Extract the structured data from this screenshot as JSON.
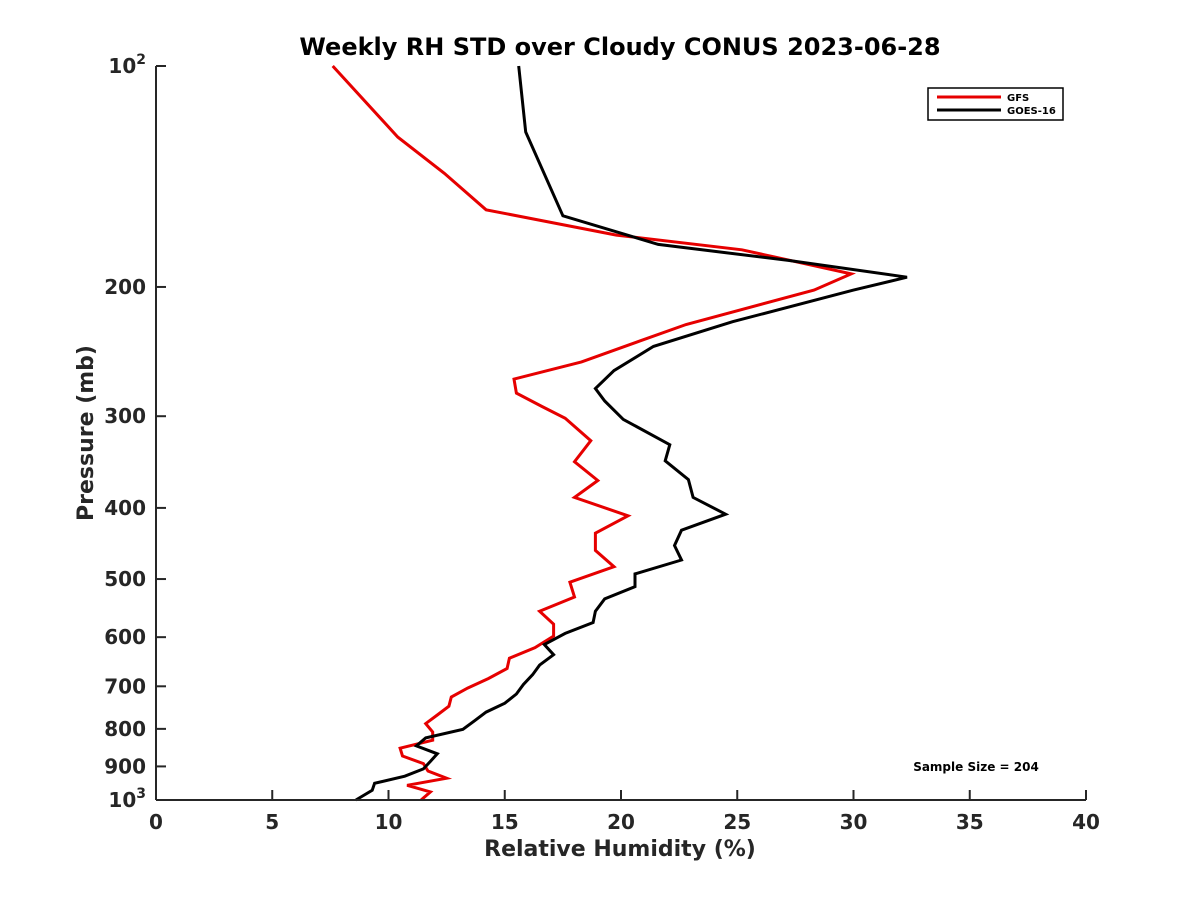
{
  "chart_data": {
    "type": "line",
    "title": "Weekly RH STD over Cloudy CONUS 2023-06-28",
    "xlabel": "Relative Humidity (%)",
    "ylabel": "Pressure (mb)",
    "xlim": [
      0,
      40
    ],
    "ylim": [
      100,
      1000
    ],
    "y_scale": "log",
    "y_reversed": true,
    "grid": false,
    "x_ticks": [
      {
        "value": 0,
        "label": "0"
      },
      {
        "value": 5,
        "label": "5"
      },
      {
        "value": 10,
        "label": "10"
      },
      {
        "value": 15,
        "label": "15"
      },
      {
        "value": 20,
        "label": "20"
      },
      {
        "value": 25,
        "label": "25"
      },
      {
        "value": 30,
        "label": "30"
      },
      {
        "value": 35,
        "label": "35"
      },
      {
        "value": 40,
        "label": "40"
      }
    ],
    "y_ticks": [
      {
        "value": 100,
        "label": "10",
        "sup": "2"
      },
      {
        "value": 200,
        "label": "200"
      },
      {
        "value": 300,
        "label": "300"
      },
      {
        "value": 400,
        "label": "400"
      },
      {
        "value": 500,
        "label": "500"
      },
      {
        "value": 600,
        "label": "600"
      },
      {
        "value": 700,
        "label": "700"
      },
      {
        "value": 800,
        "label": "800"
      },
      {
        "value": 900,
        "label": "900"
      },
      {
        "value": 1000,
        "label": "10",
        "sup": "3"
      }
    ],
    "legend_position": "top-right",
    "annotation": "Sample Size = 204",
    "series": [
      {
        "name": "GFS",
        "color": "#e60000",
        "points": [
          [
            7.6,
            100
          ],
          [
            10.4,
            125
          ],
          [
            12.4,
            140
          ],
          [
            14.2,
            157
          ],
          [
            19.8,
            170
          ],
          [
            25.2,
            178
          ],
          [
            29.9,
            192
          ],
          [
            28.3,
            202
          ],
          [
            22.8,
            225
          ],
          [
            20.8,
            237
          ],
          [
            18.3,
            253
          ],
          [
            15.4,
            267
          ],
          [
            15.5,
            279
          ],
          [
            16.6,
            291
          ],
          [
            17.6,
            302
          ],
          [
            18.7,
            324
          ],
          [
            18.0,
            346
          ],
          [
            19.0,
            367
          ],
          [
            18.0,
            387
          ],
          [
            20.3,
            410
          ],
          [
            18.9,
            433
          ],
          [
            18.9,
            457
          ],
          [
            19.7,
            481
          ],
          [
            17.8,
            505
          ],
          [
            18.0,
            529
          ],
          [
            16.5,
            553
          ],
          [
            17.1,
            576
          ],
          [
            17.1,
            598
          ],
          [
            16.3,
            620
          ],
          [
            15.2,
            641
          ],
          [
            15.1,
            662
          ],
          [
            14.3,
            683
          ],
          [
            13.4,
            704
          ],
          [
            12.7,
            724
          ],
          [
            12.6,
            745
          ],
          [
            12.1,
            766
          ],
          [
            11.6,
            787
          ],
          [
            11.9,
            808
          ],
          [
            11.9,
            829
          ],
          [
            10.5,
            850
          ],
          [
            10.6,
            871
          ],
          [
            11.5,
            892
          ],
          [
            11.7,
            913
          ],
          [
            12.5,
            934
          ],
          [
            10.8,
            955
          ],
          [
            11.8,
            975
          ],
          [
            11.4,
            1000
          ]
        ]
      },
      {
        "name": "GOES-16",
        "color": "#000000",
        "points": [
          [
            15.6,
            100
          ],
          [
            15.9,
            123
          ],
          [
            17.5,
            160
          ],
          [
            21.6,
            175
          ],
          [
            27.2,
            184
          ],
          [
            32.3,
            194
          ],
          [
            30.0,
            202
          ],
          [
            24.8,
            223
          ],
          [
            21.4,
            241
          ],
          [
            19.7,
            260
          ],
          [
            18.9,
            275
          ],
          [
            19.3,
            286
          ],
          [
            20.1,
            303
          ],
          [
            22.1,
            328
          ],
          [
            21.9,
            345
          ],
          [
            22.9,
            366
          ],
          [
            23.1,
            387
          ],
          [
            24.5,
            408
          ],
          [
            22.6,
            429
          ],
          [
            22.3,
            450
          ],
          [
            22.6,
            471
          ],
          [
            20.6,
            492
          ],
          [
            20.6,
            512
          ],
          [
            19.3,
            532
          ],
          [
            18.9,
            553
          ],
          [
            18.8,
            573
          ],
          [
            17.6,
            593
          ],
          [
            16.7,
            614
          ],
          [
            17.1,
            634
          ],
          [
            16.5,
            655
          ],
          [
            16.2,
            675
          ],
          [
            15.8,
            696
          ],
          [
            15.5,
            717
          ],
          [
            15.0,
            738
          ],
          [
            14.2,
            759
          ],
          [
            13.7,
            780
          ],
          [
            13.2,
            801
          ],
          [
            11.6,
            823
          ],
          [
            11.2,
            844
          ],
          [
            12.1,
            865
          ],
          [
            11.8,
            886
          ],
          [
            11.5,
            907
          ],
          [
            10.7,
            928
          ],
          [
            9.4,
            949
          ],
          [
            9.3,
            970
          ],
          [
            8.6,
            1000
          ]
        ]
      }
    ]
  }
}
